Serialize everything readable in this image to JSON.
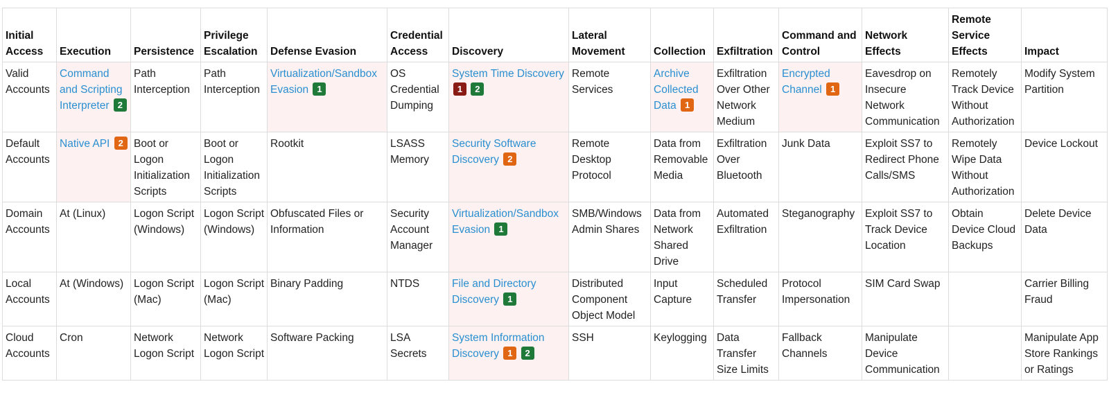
{
  "colors": {
    "link": "#2a8fd0",
    "highlight": "#fdf1f1",
    "badge_green": "#1f7a3a",
    "badge_orange": "#e06614",
    "badge_red": "#8a1a14"
  },
  "columns": [
    "Initial Access",
    "Execution",
    "Persistence",
    "Privilege Escalation",
    "Defense Evasion",
    "Credential Access",
    "Discovery",
    "Lateral Movement",
    "Collection",
    "Exfiltration",
    "Command and Control",
    "Network Effects",
    "Remote Service Effects",
    "Impact"
  ],
  "rows": [
    [
      {
        "text": "Valid Accounts"
      },
      {
        "text": "Command and Scripting Interpreter",
        "link": true,
        "hl": true,
        "badges": [
          {
            "label": "2",
            "color": "green"
          }
        ]
      },
      {
        "text": "Path Interception"
      },
      {
        "text": "Path Interception"
      },
      {
        "text": "Virtualization/Sandbox Evasion",
        "link": true,
        "hl": true,
        "badges": [
          {
            "label": "1",
            "color": "green"
          }
        ]
      },
      {
        "text": "OS Credential Dumping"
      },
      {
        "text": "System Time Discovery",
        "link": true,
        "hl": true,
        "badges": [
          {
            "label": "1",
            "color": "red"
          },
          {
            "label": "2",
            "color": "green"
          }
        ]
      },
      {
        "text": "Remote Services"
      },
      {
        "text": "Archive Collected Data",
        "link": true,
        "hl": true,
        "badges": [
          {
            "label": "1",
            "color": "orange"
          }
        ]
      },
      {
        "text": "Exfiltration Over Other Network Medium"
      },
      {
        "text": "Encrypted Channel",
        "link": true,
        "hl": true,
        "badges": [
          {
            "label": "1",
            "color": "orange"
          }
        ]
      },
      {
        "text": "Eavesdrop on Insecure Network Communication"
      },
      {
        "text": "Remotely Track Device Without Authorization"
      },
      {
        "text": "Modify System Partition"
      }
    ],
    [
      {
        "text": "Default Accounts"
      },
      {
        "text": "Native API",
        "link": true,
        "hl": true,
        "badges": [
          {
            "label": "2",
            "color": "orange"
          }
        ]
      },
      {
        "text": "Boot or Logon Initialization Scripts"
      },
      {
        "text": "Boot or Logon Initialization Scripts"
      },
      {
        "text": "Rootkit"
      },
      {
        "text": "LSASS Memory"
      },
      {
        "text": "Security Software Discovery",
        "link": true,
        "hl": true,
        "badges": [
          {
            "label": "2",
            "color": "orange"
          }
        ]
      },
      {
        "text": "Remote Desktop Protocol"
      },
      {
        "text": "Data from Removable Media"
      },
      {
        "text": "Exfiltration Over Bluetooth"
      },
      {
        "text": "Junk Data"
      },
      {
        "text": "Exploit SS7 to Redirect Phone Calls/SMS"
      },
      {
        "text": "Remotely Wipe Data Without Authorization"
      },
      {
        "text": "Device Lockout"
      }
    ],
    [
      {
        "text": "Domain Accounts"
      },
      {
        "text": "At (Linux)"
      },
      {
        "text": "Logon Script (Windows)"
      },
      {
        "text": "Logon Script (Windows)"
      },
      {
        "text": "Obfuscated Files or Information"
      },
      {
        "text": "Security Account Manager"
      },
      {
        "text": "Virtualization/Sandbox Evasion",
        "link": true,
        "hl": true,
        "badges": [
          {
            "label": "1",
            "color": "green"
          }
        ]
      },
      {
        "text": "SMB/Windows Admin Shares"
      },
      {
        "text": "Data from Network Shared Drive"
      },
      {
        "text": "Automated Exfiltration"
      },
      {
        "text": "Steganography"
      },
      {
        "text": "Exploit SS7 to Track Device Location"
      },
      {
        "text": "Obtain Device Cloud Backups"
      },
      {
        "text": "Delete Device Data"
      }
    ],
    [
      {
        "text": "Local Accounts"
      },
      {
        "text": "At (Windows)"
      },
      {
        "text": "Logon Script (Mac)"
      },
      {
        "text": "Logon Script (Mac)"
      },
      {
        "text": "Binary Padding"
      },
      {
        "text": "NTDS"
      },
      {
        "text": "File and Directory Discovery",
        "link": true,
        "hl": true,
        "badges": [
          {
            "label": "1",
            "color": "green"
          }
        ]
      },
      {
        "text": "Distributed Component Object Model"
      },
      {
        "text": "Input Capture"
      },
      {
        "text": "Scheduled Transfer"
      },
      {
        "text": "Protocol Impersonation"
      },
      {
        "text": "SIM Card Swap"
      },
      {
        "text": ""
      },
      {
        "text": "Carrier Billing Fraud"
      }
    ],
    [
      {
        "text": "Cloud Accounts"
      },
      {
        "text": "Cron"
      },
      {
        "text": "Network Logon Script"
      },
      {
        "text": "Network Logon Script"
      },
      {
        "text": "Software Packing"
      },
      {
        "text": "LSA Secrets"
      },
      {
        "text": "System Information Discovery",
        "link": true,
        "hl": true,
        "badges": [
          {
            "label": "1",
            "color": "orange"
          },
          {
            "label": "2",
            "color": "green"
          }
        ]
      },
      {
        "text": "SSH"
      },
      {
        "text": "Keylogging"
      },
      {
        "text": "Data Transfer Size Limits"
      },
      {
        "text": "Fallback Channels"
      },
      {
        "text": "Manipulate Device Communication"
      },
      {
        "text": ""
      },
      {
        "text": "Manipulate App Store Rankings or Ratings"
      }
    ]
  ]
}
